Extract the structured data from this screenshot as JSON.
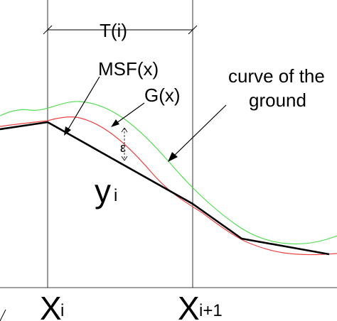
{
  "labels": {
    "period": "T(i)",
    "msf": "MSF(x)",
    "g": "G(x)",
    "ground_line1": "curve of the",
    "ground_line2": "ground",
    "epsilon": "ε",
    "y_main": "y",
    "y_sub": "i",
    "x_main": "X",
    "x_i_sub": "i",
    "x_next_sub": "i+1"
  },
  "colors": {
    "ground_curve": "#55dd55",
    "g_curve": "#ee4444",
    "msf_polyline": "#000000",
    "guides": "#000000"
  }
}
